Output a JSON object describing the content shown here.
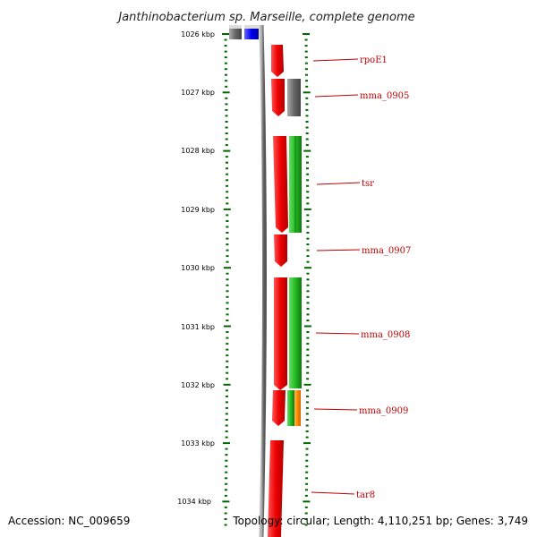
{
  "title": "Janthinobacterium sp. Marseille, complete genome",
  "footer": {
    "accession": "Accession: NC_009659",
    "topology": "Topology: circular; Length: 4,110,251 bp; Genes: 3,749"
  },
  "ticks": [
    "1026 kbp",
    "1027 kbp",
    "1028 kbp",
    "1029 kbp",
    "1030 kbp",
    "1031 kbp",
    "1032 kbp",
    "1033 kbp",
    "1034 kbp"
  ],
  "genes": [
    {
      "label": "rpoE1"
    },
    {
      "label": "mma_0905"
    },
    {
      "label": "tsr"
    },
    {
      "label": "mma_0907"
    },
    {
      "label": "mma_0908"
    },
    {
      "label": "mma_0909"
    },
    {
      "label": "tar8"
    }
  ],
  "colors": {
    "cds": "#ee0000",
    "tick": "#006600",
    "backbone": "#888888",
    "label": "#c00000",
    "grey_feature": "#666666",
    "blue_feature": "#0000ee",
    "green_feature": "#22bb22",
    "orange_feature": "#ff8800"
  }
}
